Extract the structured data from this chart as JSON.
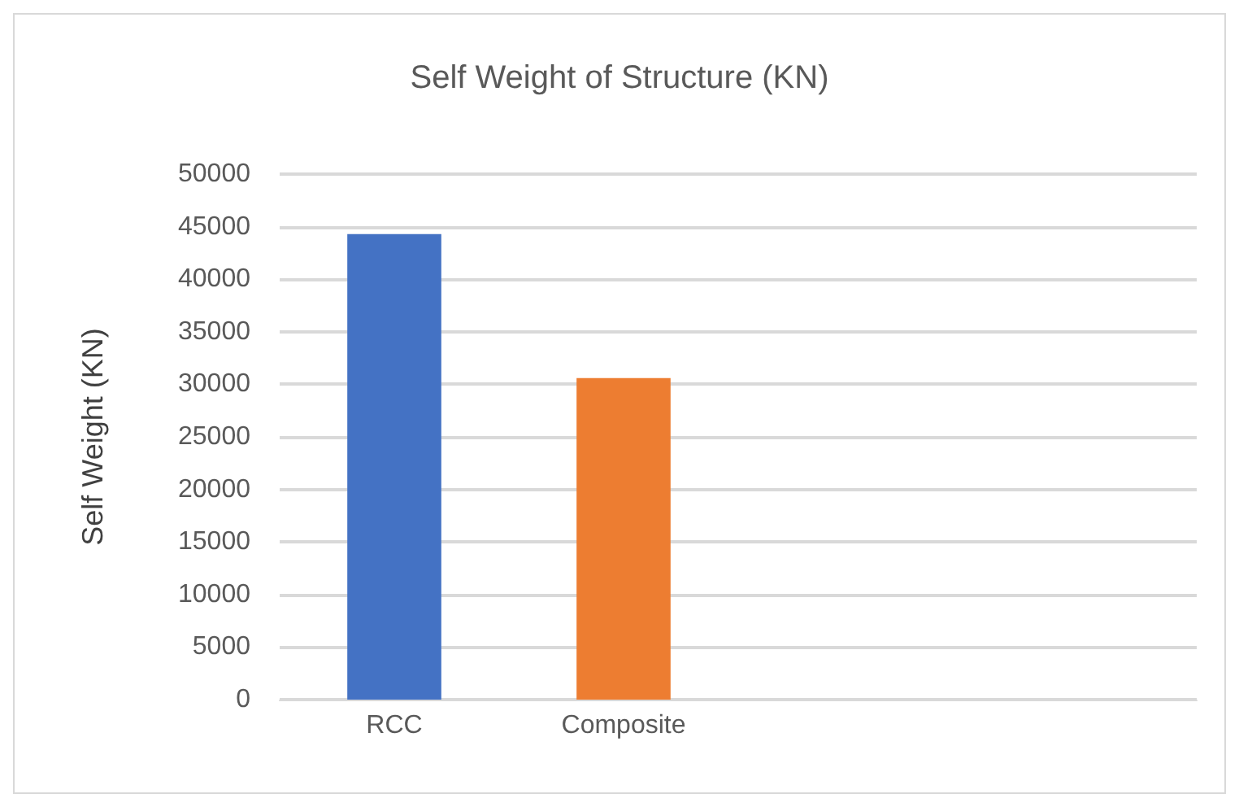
{
  "chart_data": {
    "type": "bar",
    "title": "Self Weight of Structure (KN)",
    "ylabel": "Self Weight (KN)",
    "categories": [
      "RCC",
      "Composite",
      null,
      null
    ],
    "values": [
      44300,
      30600,
      null,
      null
    ],
    "colors": [
      "#4472c4",
      "#ed7d31",
      "#a5a5a5",
      "#ffc000"
    ],
    "ylim": [
      0,
      50000
    ],
    "yticks": [
      0,
      5000,
      10000,
      15000,
      20000,
      25000,
      30000,
      35000,
      40000,
      45000,
      50000
    ],
    "grid": "y"
  }
}
